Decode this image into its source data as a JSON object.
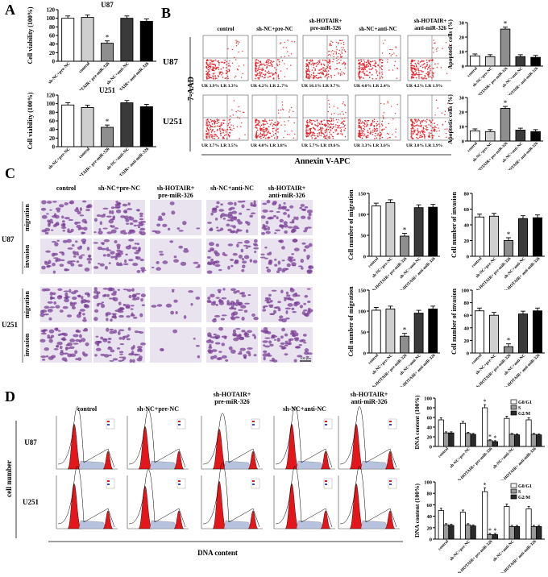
{
  "panels": {
    "A": "A",
    "B": "B",
    "C": "C",
    "D": "D"
  },
  "groups": [
    "control",
    "sh-NC+pre-NC",
    "sh-HOTAIR+ pre-miR-326",
    "sh-NC+anti-NC",
    "sh-HOTAIR+ anti-miR-326"
  ],
  "groups_short": [
    "control",
    "sh-NC+pre-NC",
    "sh-HOTAIR+ pre-miR-326",
    "sh-NC+anti-NC",
    "sh-HOTAIR+ anti-miR-326"
  ],
  "cells": [
    "U87",
    "U251"
  ],
  "panelB": {
    "ylabel": "7-AAD",
    "xlabel": "Annexin V-APC",
    "quadrants": {
      "U87": [
        [
          "UR 3.9%",
          "LR 3.3%"
        ],
        [
          "UR 4.2%",
          "LR 2..7%"
        ],
        [
          "UR 16.1%",
          "LR 9.7%"
        ],
        [
          "UR 4.0%",
          "LR 2.4%"
        ],
        [
          "UR 4.2%",
          "LR 1.9%"
        ]
      ],
      "U251": [
        [
          "UR 3.7%",
          "LR 3.5%"
        ],
        [
          "UR 4.0%",
          "LR 3.8%"
        ],
        [
          "UR 5.7%",
          "LR 19.6%"
        ],
        [
          "UR 3.3%",
          "LR 3.6%"
        ],
        [
          "UR 3.0%",
          "LR 3.9%"
        ]
      ]
    }
  },
  "panelC": {
    "row_migration": "migration",
    "row_invasion": "invasion",
    "scale": "100 μm"
  },
  "panelD": {
    "ylabel": "cell number",
    "xlabel": "DNA content"
  },
  "chart_data": [
    {
      "id": "A-U87",
      "type": "bar",
      "title": "U87",
      "ylabel": "Cell viability (100%)",
      "ylim": [
        0,
        120
      ],
      "categories": [
        "sh-NC+pre-NC",
        "control",
        "sh-HOTAIR+ pre-miR-326",
        "sh-NC+anti-NC",
        "sh-HOTAIR+ anti-miR-326"
      ],
      "values": [
        100,
        102,
        42,
        100,
        93
      ],
      "star": [
        false,
        false,
        true,
        false,
        false
      ],
      "yticks": [
        0,
        20,
        40,
        60,
        80,
        100,
        120
      ]
    },
    {
      "id": "A-U251",
      "type": "bar",
      "title": "U251",
      "ylabel": "Cell viability (100%)",
      "ylim": [
        0,
        120
      ],
      "categories": [
        "sh-NC+pre-NC",
        "control",
        "sh-HOTAIR+ pre-miR-326",
        "sh-NC+anti-NC",
        "sh-HOTAIR+ anti-miR-326"
      ],
      "values": [
        97,
        91,
        45,
        102,
        93
      ],
      "star": [
        false,
        false,
        true,
        false,
        false
      ],
      "yticks": [
        0,
        20,
        40,
        60,
        80,
        100,
        120
      ]
    },
    {
      "id": "B-U87",
      "type": "bar",
      "ylabel": "Apoptotic cells (%)",
      "ylim": [
        0,
        30
      ],
      "categories": [
        "control",
        "sh-NC+pre-NC",
        "sh-HOTAIR+ pre-miR-326",
        "sh-NC+anti-NC",
        "sh-HOTAIR+ anti-miR-326"
      ],
      "values": [
        7,
        6.5,
        25.5,
        6.5,
        6
      ],
      "star": [
        false,
        false,
        true,
        false,
        false
      ],
      "yticks": [
        0,
        10,
        20,
        30
      ]
    },
    {
      "id": "B-U251",
      "type": "bar",
      "ylabel": "Apoptotic cells (%)",
      "ylim": [
        0,
        30
      ],
      "categories": [
        "control",
        "sh-NC+pre-NC",
        "sh-HOTAIR+ pre-miR-326",
        "sh-NC+anti-NC",
        "sh-HOTAIR+ anti-miR-326"
      ],
      "values": [
        7,
        6.5,
        22.5,
        7.5,
        6.5
      ],
      "star": [
        false,
        false,
        true,
        false,
        false
      ],
      "yticks": [
        0,
        10,
        20,
        30
      ]
    },
    {
      "id": "C-U87-mig",
      "type": "bar",
      "ylabel": "Cell number of migration",
      "ylim": [
        0,
        150
      ],
      "categories": [
        "control",
        "sh-NC+pre-NC",
        "sh-HOTAIR+ pre-miR-326",
        "sh-NC+anti-NC",
        "sh-HOTAIR+ anti-miR-326"
      ],
      "values": [
        120,
        128,
        48,
        116,
        117
      ],
      "star": [
        false,
        false,
        true,
        false,
        false
      ],
      "yticks": [
        0,
        50,
        100,
        150
      ]
    },
    {
      "id": "C-U87-inv",
      "type": "bar",
      "ylabel": "Cell number of invasion",
      "ylim": [
        0,
        80
      ],
      "categories": [
        "control",
        "sh-NC+pre-NC",
        "sh-HOTAIR+ pre-miR-326",
        "sh-NC+anti-NC",
        "sh-HOTAIR+ anti-miR-326"
      ],
      "values": [
        50,
        51,
        20,
        48,
        49
      ],
      "star": [
        false,
        false,
        true,
        false,
        false
      ],
      "yticks": [
        0,
        20,
        40,
        60,
        80
      ]
    },
    {
      "id": "C-U251-mig",
      "type": "bar",
      "ylabel": "Cell number of migration",
      "ylim": [
        0,
        150
      ],
      "categories": [
        "control",
        "sh-NC+pre-NC",
        "sh-HOTAIR+ pre-miR-326",
        "sh-NC+anti-NC",
        "sh-HOTAIR+ anti-miR-326"
      ],
      "values": [
        102,
        105,
        40,
        95,
        105
      ],
      "star": [
        false,
        false,
        true,
        false,
        false
      ],
      "yticks": [
        0,
        50,
        100,
        150
      ]
    },
    {
      "id": "C-U251-inv",
      "type": "bar",
      "ylabel": "Cell number of invasion",
      "ylim": [
        0,
        100
      ],
      "categories": [
        "control",
        "sh-NC+pre-NC",
        "sh-HOTAIR+ pre-miR-326",
        "sh-NC+anti-NC",
        "sh-HOTAIR+ anti-miR-326"
      ],
      "values": [
        67,
        60,
        10,
        62,
        67
      ],
      "star": [
        false,
        false,
        true,
        false,
        false
      ],
      "yticks": [
        0,
        20,
        40,
        60,
        80,
        100
      ]
    },
    {
      "id": "D-U87",
      "type": "bar",
      "ylabel": "DNA content (100%)",
      "ylim": [
        0,
        100
      ],
      "legend": [
        "G0/G1",
        "S",
        "G2/M"
      ],
      "categories": [
        "control",
        "sh-NC+pre-NC",
        "sh-HOTAIR+ pre-miR-326",
        "sh-NC+anti-NC",
        "sh-HOTAIR+ anti-miR-326"
      ],
      "series": [
        {
          "name": "G0/G1",
          "values": [
            55,
            48,
            80,
            58,
            55
          ]
        },
        {
          "name": "S",
          "values": [
            28,
            27,
            12,
            25,
            25
          ]
        },
        {
          "name": "G2/M",
          "values": [
            28,
            25,
            10,
            24,
            24
          ]
        }
      ],
      "star": [
        false,
        false,
        true,
        false,
        false
      ],
      "yticks": [
        0,
        20,
        40,
        60,
        80,
        100
      ]
    },
    {
      "id": "D-U251",
      "type": "bar",
      "ylabel": "DNA content (100%)",
      "ylim": [
        0,
        100
      ],
      "legend": [
        "G0/G1",
        "S",
        "G2/M"
      ],
      "categories": [
        "control",
        "sh-NC+pre-NC",
        "sh-HOTAIR+ pre-miR-326",
        "sh-NC+anti-NC",
        "sh-HOTAIR+ anti-miR-326"
      ],
      "series": [
        {
          "name": "G0/G1",
          "values": [
            50,
            47,
            83,
            57,
            53
          ]
        },
        {
          "name": "S",
          "values": [
            25,
            25,
            8,
            22,
            22
          ]
        },
        {
          "name": "G2/M",
          "values": [
            24,
            23,
            8,
            22,
            22
          ]
        }
      ],
      "star": [
        false,
        false,
        true,
        false,
        false
      ],
      "yticks": [
        0,
        20,
        40,
        60,
        80,
        100
      ]
    }
  ]
}
